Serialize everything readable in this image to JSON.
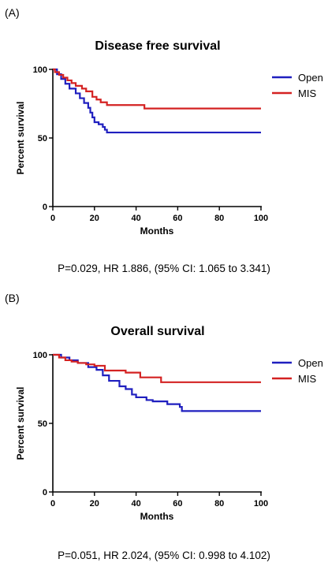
{
  "colors": {
    "open": "#1f1fbf",
    "mis": "#d42222",
    "axis": "#000000"
  },
  "chart_data": [
    {
      "panel_label": "(A)",
      "type": "line",
      "step": true,
      "title": "Disease free survival",
      "xlabel": "Months",
      "ylabel": "Percent survival",
      "xlim": [
        0,
        100
      ],
      "ylim": [
        0,
        100
      ],
      "xticks": [
        0,
        20,
        40,
        60,
        80,
        100
      ],
      "yticks": [
        0,
        50,
        100
      ],
      "grid": false,
      "legend_position": "top-right",
      "series": [
        {
          "name": "Open",
          "color_key": "open",
          "x": [
            0,
            2,
            4,
            6,
            8,
            11,
            13,
            15,
            17,
            18,
            19,
            20,
            22,
            24,
            25,
            26,
            100
          ],
          "y": [
            100,
            96.5,
            93,
            89.5,
            86,
            82.5,
            79,
            75.5,
            72,
            68.5,
            65,
            61.5,
            60,
            58,
            56,
            54,
            54
          ]
        },
        {
          "name": "MIS",
          "color_key": "mis",
          "x": [
            0,
            1,
            3,
            5,
            7,
            9,
            11,
            14,
            16,
            19,
            21,
            23,
            26,
            44,
            100
          ],
          "y": [
            100,
            98,
            96,
            94,
            92,
            90,
            88,
            86,
            84,
            80,
            78,
            76,
            74,
            71.5,
            71.5
          ]
        }
      ],
      "stats_text": "P=0.029, HR 1.886, (95% CI: 1.065 to 3.341)"
    },
    {
      "panel_label": "(B)",
      "type": "line",
      "step": true,
      "title": "Overall survival",
      "xlabel": "Months",
      "ylabel": "Percent survival",
      "xlim": [
        0,
        100
      ],
      "ylim": [
        0,
        100
      ],
      "xticks": [
        0,
        20,
        40,
        60,
        80,
        100
      ],
      "yticks": [
        0,
        50,
        100
      ],
      "grid": false,
      "legend_position": "top-right",
      "series": [
        {
          "name": "Open",
          "color_key": "open",
          "x": [
            0,
            4,
            8,
            12,
            17,
            21,
            24,
            27,
            32,
            35,
            38,
            40,
            45,
            48,
            55,
            61,
            62,
            100
          ],
          "y": [
            100,
            98,
            96,
            94,
            91,
            89,
            85,
            81,
            77,
            75,
            71,
            69,
            67,
            66,
            64,
            62,
            59,
            59
          ]
        },
        {
          "name": "MIS",
          "color_key": "mis",
          "x": [
            0,
            3,
            6,
            9,
            12,
            16,
            20,
            25,
            35,
            42,
            52,
            100
          ],
          "y": [
            100,
            98,
            96,
            95,
            94,
            93,
            92,
            88.5,
            87,
            83.5,
            80,
            80
          ]
        }
      ],
      "stats_text": "P=0.051, HR 2.024, (95% CI: 0.998 to 4.102)"
    }
  ]
}
